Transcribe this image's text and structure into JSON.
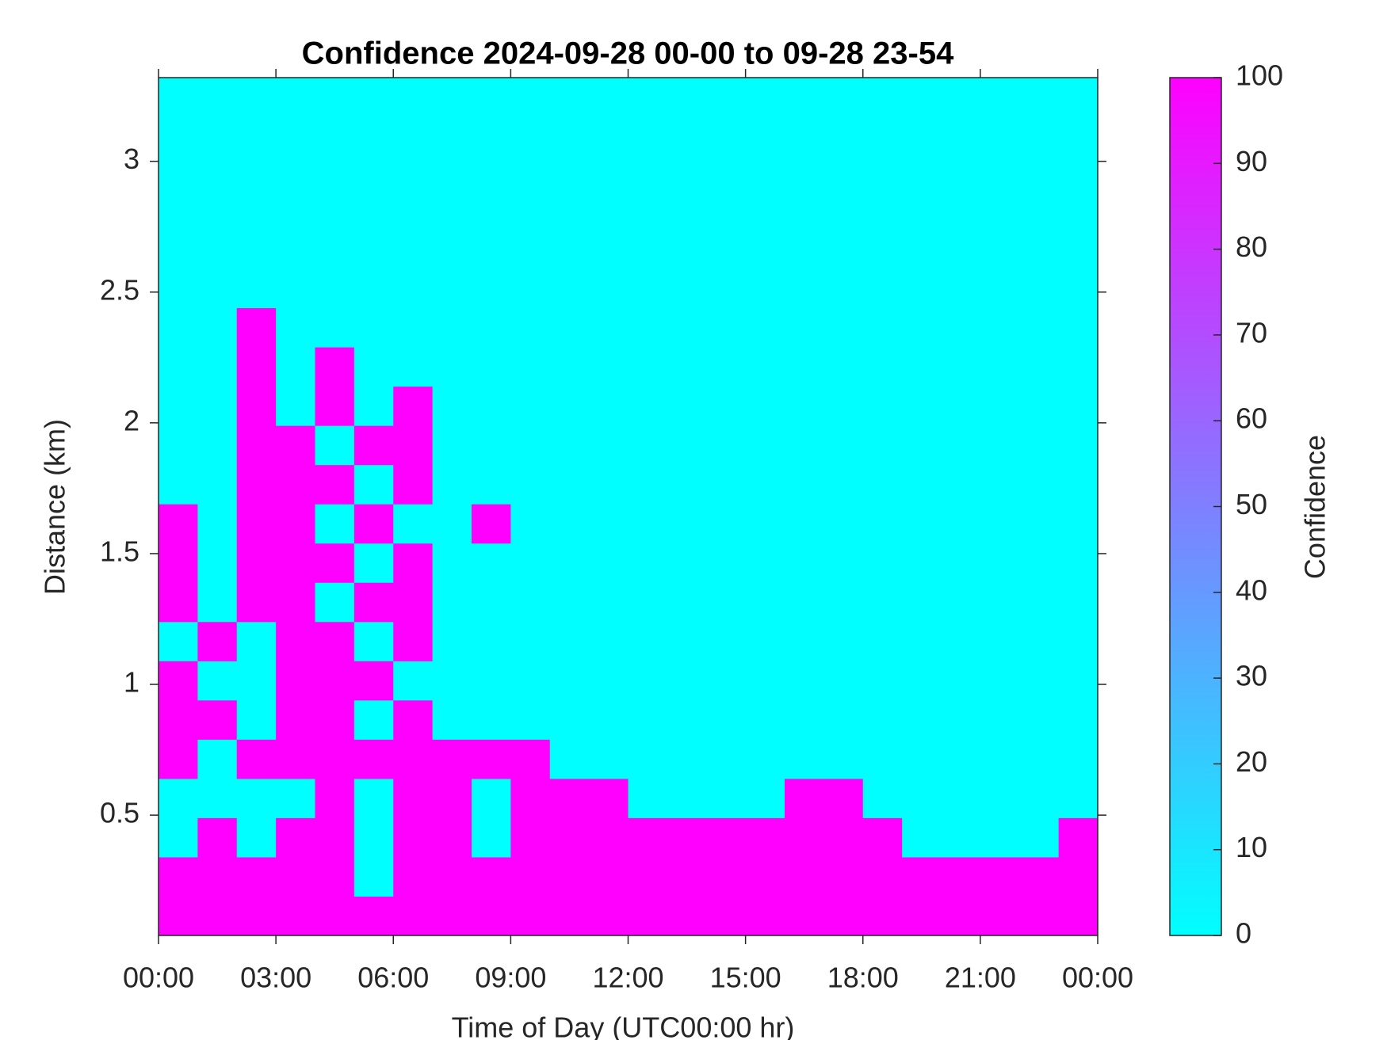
{
  "chart_data": {
    "type": "heatmap",
    "title": "Confidence 2024-09-28 00-00 to 09-28 23-54",
    "x_label": "Time of Day (UTC00:00 hr)",
    "y_label": "Distance (km)",
    "colorbar_label": "Confidence",
    "colormap": [
      "#00ffff",
      "#ff00ff"
    ],
    "xlim": [
      0,
      24
    ],
    "xticks": [
      {
        "value": 0,
        "label": "00:00"
      },
      {
        "value": 3,
        "label": "03:00"
      },
      {
        "value": 6,
        "label": "06:00"
      },
      {
        "value": 9,
        "label": "09:00"
      },
      {
        "value": 12,
        "label": "12:00"
      },
      {
        "value": 15,
        "label": "15:00"
      },
      {
        "value": 18,
        "label": "18:00"
      },
      {
        "value": 21,
        "label": "21:00"
      },
      {
        "value": 24,
        "label": "00:00"
      }
    ],
    "ylim": [
      0.04,
      3.32
    ],
    "yticks": [
      0.5,
      1,
      1.5,
      2,
      2.5,
      3
    ],
    "clim": [
      0,
      100
    ],
    "cticks": [
      0,
      10,
      20,
      30,
      40,
      50,
      60,
      70,
      80,
      90,
      100
    ],
    "x": [
      0.5,
      1.5,
      2.5,
      3.5,
      4.5,
      5.5,
      6.5,
      7.5,
      8.5,
      9.5,
      10.5,
      11.5,
      12.5,
      13.5,
      14.5,
      15.5,
      16.5,
      17.5,
      18.5,
      19.5,
      20.5,
      21.5,
      22.5,
      23.5
    ],
    "y": [
      0.115,
      0.265,
      0.415,
      0.565,
      0.715,
      0.865,
      1.015,
      1.165,
      1.315,
      1.465,
      1.615,
      1.765,
      1.915,
      2.065,
      2.215,
      2.365,
      2.515,
      2.665,
      2.815,
      2.965,
      3.115,
      3.265
    ],
    "z": [
      [
        100,
        100,
        100,
        100,
        100,
        100,
        100,
        100,
        100,
        100,
        100,
        100,
        100,
        100,
        100,
        100,
        100,
        100,
        100,
        100,
        100,
        100,
        100,
        100
      ],
      [
        100,
        100,
        100,
        100,
        100,
        0,
        100,
        100,
        100,
        100,
        100,
        100,
        100,
        100,
        100,
        100,
        100,
        100,
        100,
        100,
        100,
        100,
        100,
        100
      ],
      [
        0,
        100,
        0,
        100,
        100,
        0,
        100,
        100,
        0,
        100,
        100,
        100,
        100,
        100,
        100,
        100,
        100,
        100,
        100,
        0,
        0,
        0,
        0,
        100
      ],
      [
        0,
        0,
        0,
        0,
        100,
        0,
        100,
        100,
        0,
        100,
        100,
        100,
        0,
        0,
        0,
        0,
        100,
        100,
        0,
        0,
        0,
        0,
        0,
        0
      ],
      [
        100,
        0,
        100,
        100,
        100,
        100,
        100,
        100,
        100,
        100,
        0,
        0,
        0,
        0,
        0,
        0,
        0,
        0,
        0,
        0,
        0,
        0,
        0,
        0
      ],
      [
        100,
        100,
        0,
        100,
        100,
        0,
        100,
        0,
        0,
        0,
        0,
        0,
        0,
        0,
        0,
        0,
        0,
        0,
        0,
        0,
        0,
        0,
        0,
        0
      ],
      [
        100,
        0,
        0,
        100,
        100,
        100,
        0,
        0,
        0,
        0,
        0,
        0,
        0,
        0,
        0,
        0,
        0,
        0,
        0,
        0,
        0,
        0,
        0,
        0
      ],
      [
        0,
        100,
        0,
        100,
        100,
        0,
        100,
        0,
        0,
        0,
        0,
        0,
        0,
        0,
        0,
        0,
        0,
        0,
        0,
        0,
        0,
        0,
        0,
        0
      ],
      [
        100,
        0,
        100,
        100,
        0,
        100,
        100,
        0,
        0,
        0,
        0,
        0,
        0,
        0,
        0,
        0,
        0,
        0,
        0,
        0,
        0,
        0,
        0,
        0
      ],
      [
        100,
        0,
        100,
        100,
        100,
        0,
        100,
        0,
        0,
        0,
        0,
        0,
        0,
        0,
        0,
        0,
        0,
        0,
        0,
        0,
        0,
        0,
        0,
        0
      ],
      [
        100,
        0,
        100,
        100,
        0,
        100,
        0,
        0,
        100,
        0,
        0,
        0,
        0,
        0,
        0,
        0,
        0,
        0,
        0,
        0,
        0,
        0,
        0,
        0
      ],
      [
        0,
        0,
        100,
        100,
        100,
        0,
        100,
        0,
        0,
        0,
        0,
        0,
        0,
        0,
        0,
        0,
        0,
        0,
        0,
        0,
        0,
        0,
        0,
        0
      ],
      [
        0,
        0,
        100,
        100,
        0,
        100,
        100,
        0,
        0,
        0,
        0,
        0,
        0,
        0,
        0,
        0,
        0,
        0,
        0,
        0,
        0,
        0,
        0,
        0
      ],
      [
        0,
        0,
        100,
        0,
        100,
        0,
        100,
        0,
        0,
        0,
        0,
        0,
        0,
        0,
        0,
        0,
        0,
        0,
        0,
        0,
        0,
        0,
        0,
        0
      ],
      [
        0,
        0,
        100,
        0,
        100,
        0,
        0,
        0,
        0,
        0,
        0,
        0,
        0,
        0,
        0,
        0,
        0,
        0,
        0,
        0,
        0,
        0,
        0,
        0
      ],
      [
        0,
        0,
        100,
        0,
        0,
        0,
        0,
        0,
        0,
        0,
        0,
        0,
        0,
        0,
        0,
        0,
        0,
        0,
        0,
        0,
        0,
        0,
        0,
        0
      ],
      [
        0,
        0,
        0,
        0,
        0,
        0,
        0,
        0,
        0,
        0,
        0,
        0,
        0,
        0,
        0,
        0,
        0,
        0,
        0,
        0,
        0,
        0,
        0,
        0
      ],
      [
        0,
        0,
        0,
        0,
        0,
        0,
        0,
        0,
        0,
        0,
        0,
        0,
        0,
        0,
        0,
        0,
        0,
        0,
        0,
        0,
        0,
        0,
        0,
        0
      ],
      [
        0,
        0,
        0,
        0,
        0,
        0,
        0,
        0,
        0,
        0,
        0,
        0,
        0,
        0,
        0,
        0,
        0,
        0,
        0,
        0,
        0,
        0,
        0,
        0
      ],
      [
        0,
        0,
        0,
        0,
        0,
        0,
        0,
        0,
        0,
        0,
        0,
        0,
        0,
        0,
        0,
        0,
        0,
        0,
        0,
        0,
        0,
        0,
        0,
        0
      ],
      [
        0,
        0,
        0,
        0,
        0,
        0,
        0,
        0,
        0,
        0,
        0,
        0,
        0,
        0,
        0,
        0,
        0,
        0,
        0,
        0,
        0,
        0,
        0,
        0
      ],
      [
        0,
        0,
        0,
        0,
        0,
        0,
        0,
        0,
        0,
        0,
        0,
        0,
        0,
        0,
        0,
        0,
        0,
        0,
        0,
        0,
        0,
        0,
        0,
        0
      ]
    ]
  }
}
